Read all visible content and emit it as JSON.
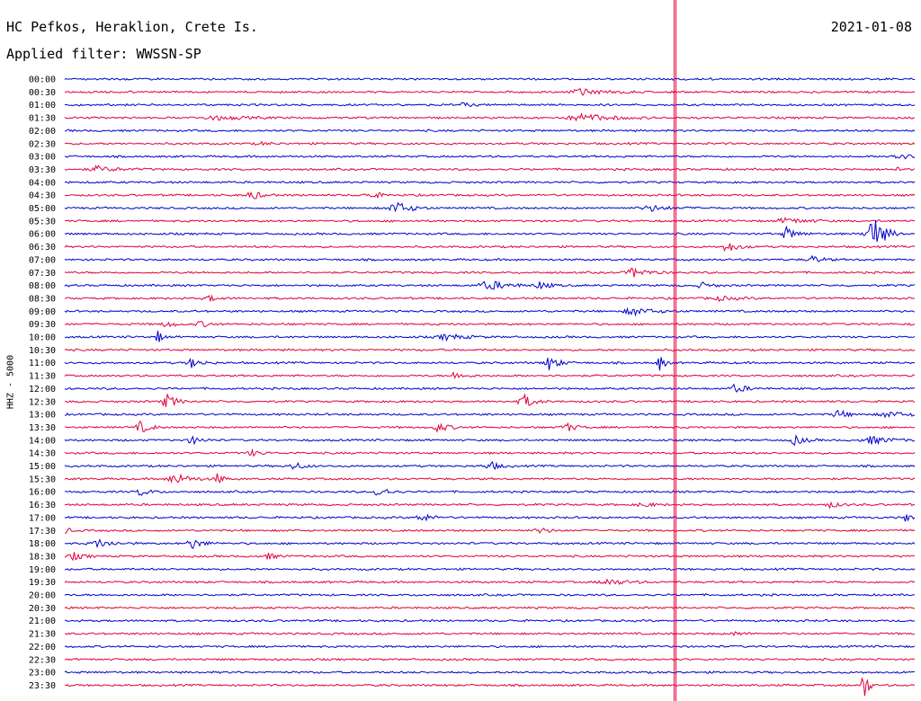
{
  "header": {
    "station": "HC Pefkos, Heraklion, Crete Is.",
    "filter": "Applied filter: WWSSN-SP",
    "date": "2021-01-08"
  },
  "chart_data": {
    "type": "line",
    "ylabel": "HHZ - 5000",
    "colors": {
      "even": "#0000cc",
      "odd": "#e0003c",
      "marker": "#e0003c"
    },
    "rows": [
      "00:00",
      "00:30",
      "01:00",
      "01:30",
      "02:00",
      "02:30",
      "03:00",
      "03:30",
      "04:00",
      "04:30",
      "05:00",
      "05:30",
      "06:00",
      "06:30",
      "07:00",
      "07:30",
      "08:00",
      "08:30",
      "09:00",
      "09:30",
      "10:00",
      "10:30",
      "11:00",
      "11:30",
      "12:00",
      "12:30",
      "13:00",
      "13:30",
      "14:00",
      "14:30",
      "15:00",
      "15:30",
      "16:00",
      "16:30",
      "17:00",
      "17:30",
      "18:00",
      "18:30",
      "19:00",
      "19:30",
      "20:00",
      "20:30",
      "21:00",
      "21:30",
      "22:00",
      "22:30",
      "23:00",
      "23:30"
    ],
    "marker_position": 0.717
  }
}
